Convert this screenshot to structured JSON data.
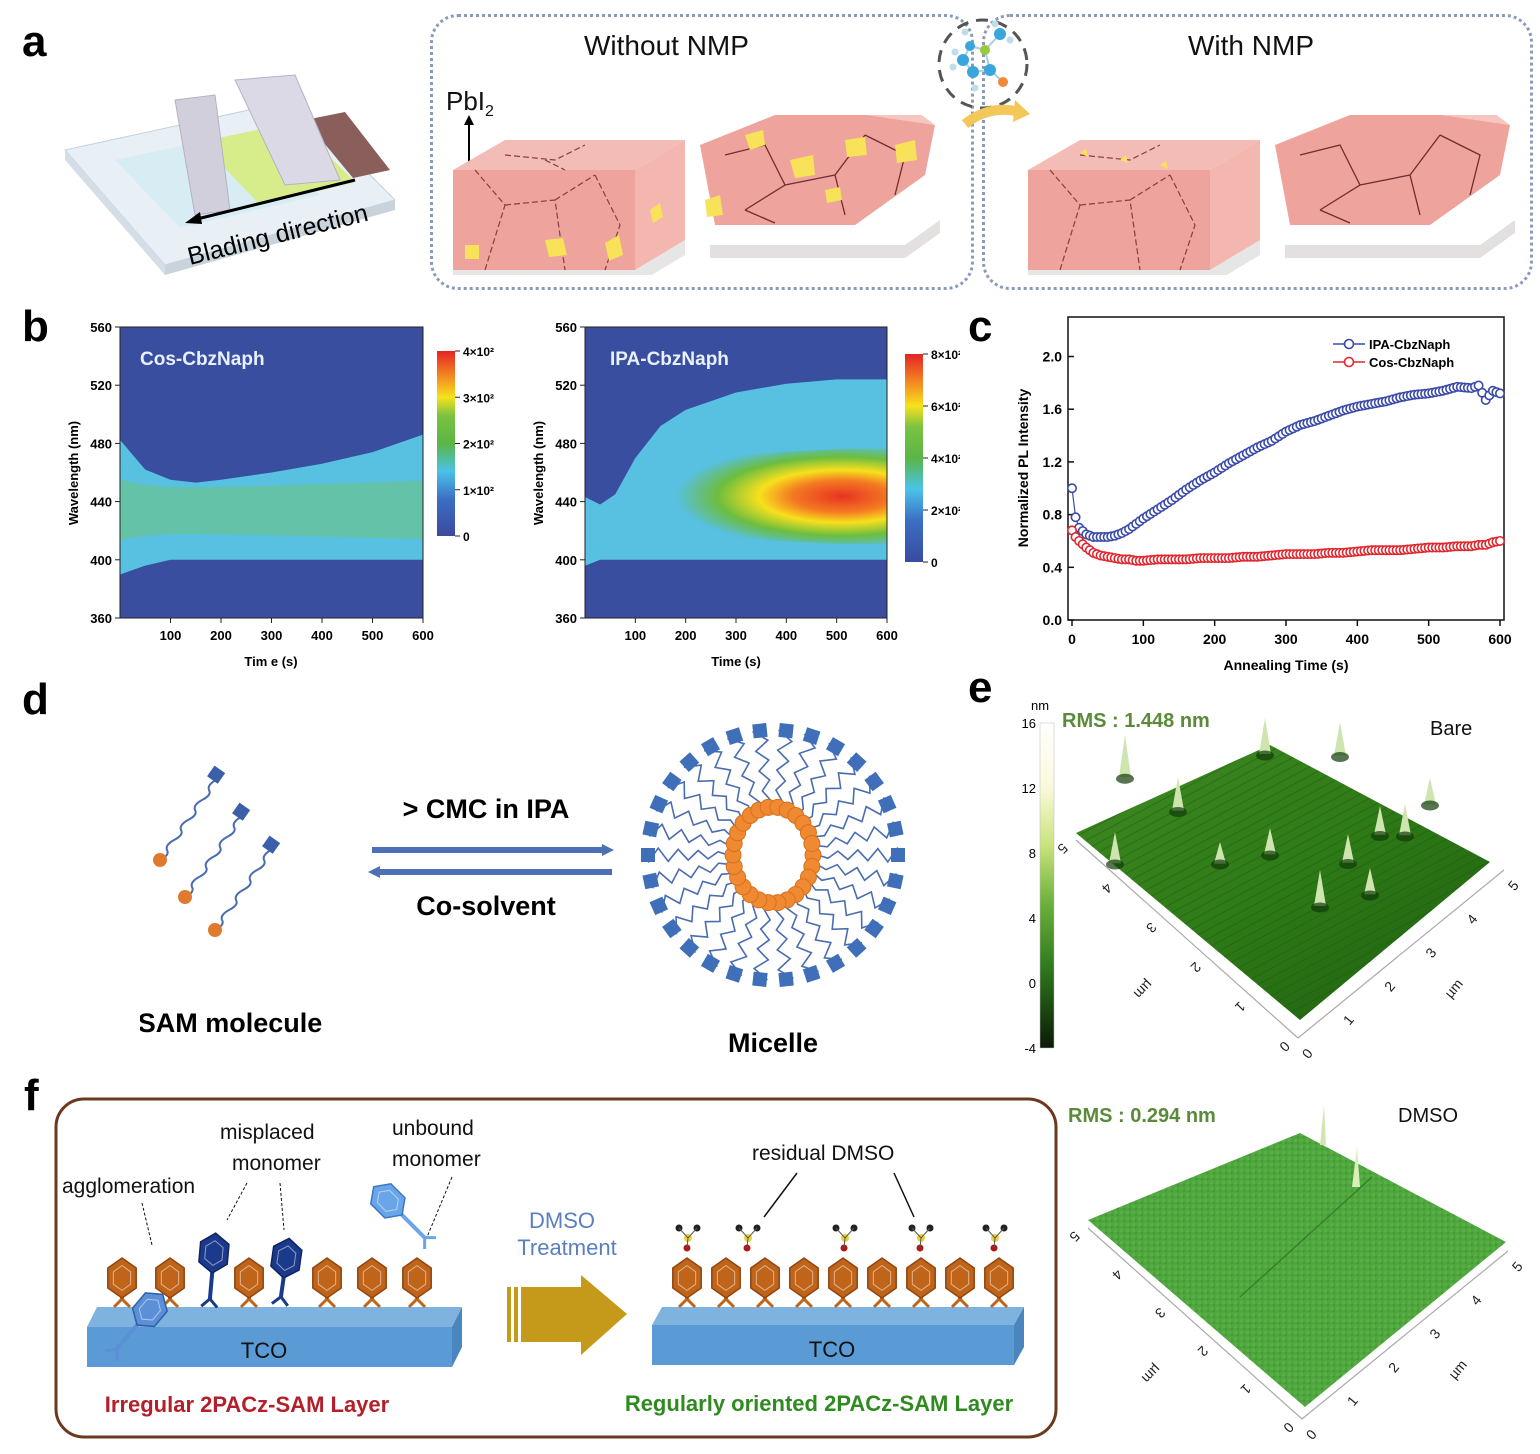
{
  "panels": {
    "a": {
      "letter": "a",
      "blading_label": "Blading direction",
      "pbi2_label": "PbI",
      "pbi2_sub": "2",
      "without_title": "Without NMP",
      "with_title": "With NMP",
      "colors": {
        "perovskite": "#efa7a3",
        "pbi2": "#f7e25a",
        "film": "#d7ec8a"
      }
    },
    "b": {
      "letter": "b",
      "maps": [
        {
          "label": "Cos-CbzNaph",
          "ylabel": "Wavelength (nm)",
          "xlabel": "Tim e (s)",
          "yticks": [
            "560",
            "520",
            "480",
            "440",
            "400",
            "360"
          ],
          "xticks": [
            "100",
            "200",
            "300",
            "400",
            "500",
            "600"
          ],
          "cbar_ticks": [
            "4×10²",
            "3×10²",
            "2×10²",
            "1×10²",
            "0"
          ]
        },
        {
          "label": "IPA-CbzNaph",
          "ylabel": "Wavelength (nm)",
          "xlabel": "Time (s)",
          "yticks": [
            "560",
            "520",
            "480",
            "440",
            "400",
            "360"
          ],
          "xticks": [
            "100",
            "200",
            "300",
            "400",
            "500",
            "600"
          ],
          "cbar_ticks": [
            "8×10²",
            "6×10²",
            "4×10²",
            "2×10²",
            "0"
          ]
        }
      ]
    },
    "c": {
      "letter": "c"
    },
    "d": {
      "letter": "d",
      "forward_label": "> CMC in IPA",
      "backward_label": "Co-solvent",
      "left_caption": "SAM molecule",
      "right_caption": "Micelle"
    },
    "e": {
      "letter": "e",
      "cbar_unit": "nm",
      "cbar_ticks": [
        "16",
        "12",
        "8",
        "4",
        "0",
        "-4"
      ],
      "afm": [
        {
          "rms": "RMS : 1.448 nm",
          "name": "Bare",
          "axis_unit": "µm",
          "ticks": [
            "0",
            "1",
            "2",
            "3",
            "4",
            "5"
          ]
        },
        {
          "rms": "RMS : 0.294 nm",
          "name": "DMSO",
          "axis_unit": "µm",
          "ticks": [
            "0",
            "1",
            "2",
            "3",
            "4",
            "5"
          ]
        }
      ]
    },
    "f": {
      "letter": "f",
      "labels": {
        "agglomeration": "agglomeration",
        "misplaced_1": "misplaced",
        "misplaced_2": "monomer",
        "unbound_1": "unbound",
        "unbound_2": "monomer",
        "residual": "residual DMSO",
        "tco": "TCO",
        "treatment_1": "DMSO",
        "treatment_2": "Treatment",
        "irregular": "Irregular 2PACz-SAM Layer",
        "regular": "Regularly oriented 2PACz-SAM Layer"
      },
      "colors": {
        "irregular": "#b3202a",
        "regular": "#2f8a1f",
        "treatment": "#5a7fc0",
        "monomer": "#c0641a",
        "tco": "#5b9bd5"
      }
    }
  },
  "chart_data": [
    {
      "type": "heatmap",
      "title": "Cos-CbzNaph",
      "xlabel": "Time (s)",
      "ylabel": "Wavelength (nm)",
      "xlim": [
        0,
        600
      ],
      "ylim": [
        360,
        560
      ],
      "colorbar": {
        "range": [
          0,
          400
        ],
        "ticks": [
          0,
          100,
          200,
          300,
          400
        ]
      },
      "emission_band": {
        "time": [
          0,
          50,
          100,
          150,
          200,
          300,
          400,
          500,
          600
        ],
        "upper_edge_nm": [
          482,
          462,
          455,
          453,
          455,
          460,
          466,
          474,
          486
        ],
        "lower_edge_nm": [
          390,
          396,
          400,
          400,
          400,
          400,
          400,
          400,
          400
        ],
        "peak_nm": 432,
        "peak_intensity": [
          200,
          150,
          130,
          130,
          135,
          145,
          160,
          175,
          190
        ]
      }
    },
    {
      "type": "heatmap",
      "title": "IPA-CbzNaph",
      "xlabel": "Time (s)",
      "ylabel": "Wavelength (nm)",
      "xlim": [
        0,
        600
      ],
      "ylim": [
        360,
        560
      ],
      "colorbar": {
        "range": [
          0,
          800
        ],
        "ticks": [
          0,
          200,
          400,
          600,
          800
        ]
      },
      "emission_band": {
        "time": [
          0,
          30,
          60,
          100,
          150,
          200,
          300,
          400,
          500,
          600
        ],
        "upper_edge_nm": [
          443,
          438,
          445,
          470,
          492,
          503,
          515,
          521,
          524,
          524
        ],
        "lower_edge_nm": [
          396,
          400,
          400,
          400,
          400,
          400,
          400,
          400,
          400,
          400
        ],
        "peak_nm": 440,
        "peak_intensity": [
          240,
          220,
          230,
          320,
          420,
          480,
          620,
          700,
          750,
          760
        ]
      }
    },
    {
      "type": "line",
      "title": "",
      "xlabel": "Annealing Time (s)",
      "ylabel": "Normalized PL Intensity",
      "xlim": [
        0,
        600
      ],
      "ylim": [
        0,
        2.3
      ],
      "xticks": [
        0,
        100,
        200,
        300,
        400,
        500,
        600
      ],
      "yticks": [
        0.0,
        0.4,
        0.8,
        1.2,
        1.6,
        2.0
      ],
      "legend": "top-right",
      "x": [
        0,
        5,
        10,
        20,
        30,
        40,
        50,
        60,
        70,
        80,
        90,
        100,
        120,
        140,
        160,
        180,
        200,
        220,
        240,
        260,
        280,
        300,
        320,
        340,
        360,
        380,
        400,
        420,
        440,
        460,
        480,
        500,
        520,
        540,
        560,
        570,
        580,
        590,
        600
      ],
      "series": [
        {
          "name": "IPA-CbzNaph",
          "color": "#3a4aa8",
          "marker": "open-circle",
          "values": [
            1.0,
            0.78,
            0.7,
            0.65,
            0.63,
            0.63,
            0.63,
            0.64,
            0.66,
            0.69,
            0.73,
            0.77,
            0.84,
            0.91,
            0.99,
            1.06,
            1.12,
            1.19,
            1.25,
            1.31,
            1.36,
            1.43,
            1.48,
            1.51,
            1.55,
            1.59,
            1.62,
            1.64,
            1.66,
            1.69,
            1.71,
            1.72,
            1.74,
            1.77,
            1.76,
            1.78,
            1.67,
            1.74,
            1.72
          ]
        },
        {
          "name": "Cos-CbzNaph",
          "color": "#e2262e",
          "marker": "open-circle",
          "values": [
            0.68,
            0.63,
            0.6,
            0.55,
            0.51,
            0.49,
            0.48,
            0.47,
            0.46,
            0.46,
            0.45,
            0.45,
            0.46,
            0.46,
            0.46,
            0.47,
            0.47,
            0.47,
            0.48,
            0.48,
            0.49,
            0.5,
            0.5,
            0.5,
            0.51,
            0.51,
            0.52,
            0.53,
            0.53,
            0.53,
            0.54,
            0.55,
            0.55,
            0.56,
            0.56,
            0.57,
            0.57,
            0.59,
            0.6
          ]
        }
      ]
    }
  ]
}
